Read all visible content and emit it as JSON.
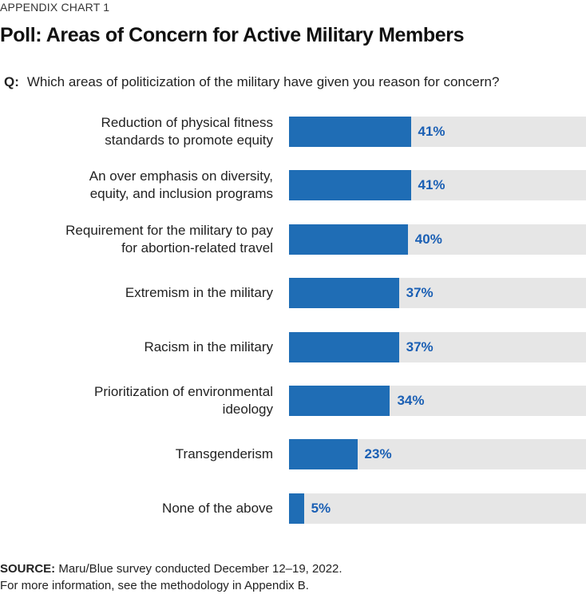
{
  "header": {
    "kicker": "APPENDIX CHART 1",
    "title": "Poll: Areas of Concern for Active Military Members",
    "question_label": "Q:",
    "question": "Which areas of politicization of the military have given you reason for concern?"
  },
  "chart_data": {
    "type": "bar",
    "orientation": "horizontal",
    "title": "Poll: Areas of Concern for Active Military Members",
    "xlabel": "",
    "ylabel": "",
    "xlim": [
      0,
      100
    ],
    "unit": "%",
    "grid": false,
    "categories": [
      "Reduction of physical fitness\nstandards to promote equity",
      "An over emphasis on diversity,\nequity, and inclusion programs",
      "Requirement for the military to pay\nfor abortion-related travel",
      "Extremism in the military",
      "Racism in the military",
      "Prioritization of environmental\nideology",
      "Transgenderism",
      "None of the above"
    ],
    "values": [
      41,
      41,
      40,
      37,
      37,
      34,
      23,
      5
    ],
    "value_labels": [
      "41%",
      "41%",
      "40%",
      "37%",
      "37%",
      "34%",
      "23%",
      "5%"
    ],
    "colors": {
      "bar": "#1f6db5",
      "track": "#e6e6e6",
      "label": "#1a5fb4"
    }
  },
  "footer": {
    "source_label": "SOURCE:",
    "source_text": "Maru/Blue survey conducted December 12–19, 2022.",
    "note": "For more information, see the methodology in Appendix B."
  }
}
